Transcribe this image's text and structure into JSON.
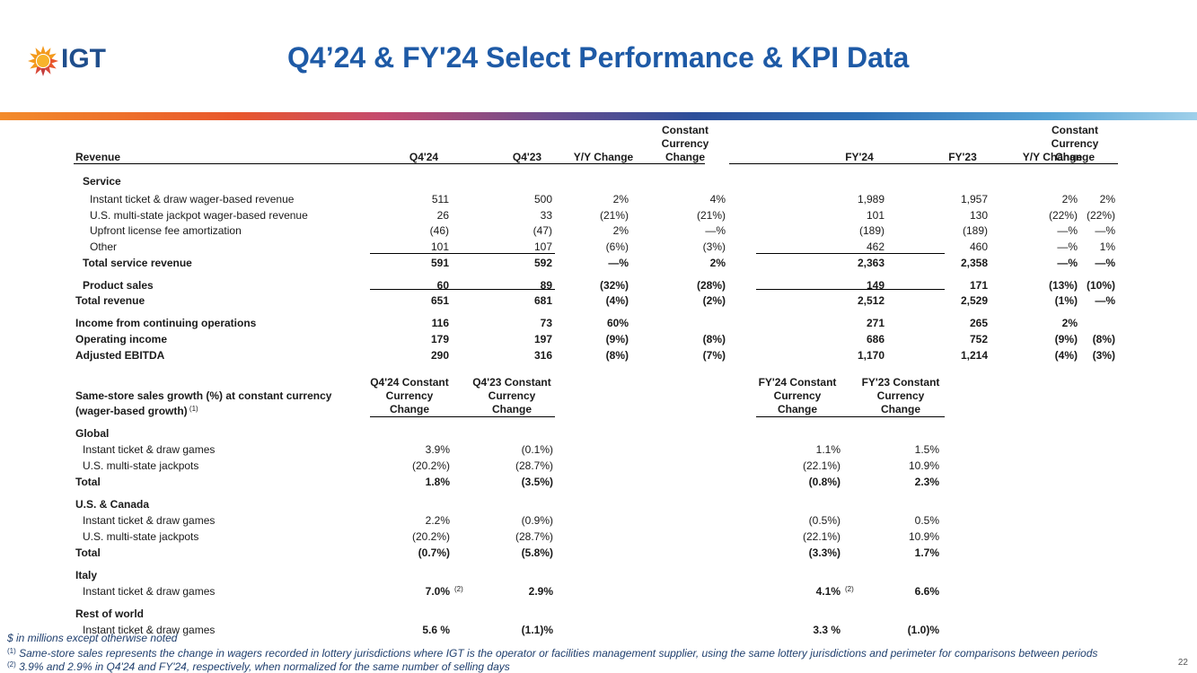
{
  "brand": {
    "logo_text": "IGT"
  },
  "title": "Q4’24 & FY'24 Select Performance & KPI Data",
  "page_number": "22",
  "revenue_table": {
    "row_header": "Revenue",
    "columns": [
      "Q4'24",
      "Q4'23",
      "Y/Y Change",
      "Constant Currency Change",
      "FY'24",
      "FY'23",
      "Y/Y Change",
      "Constant Currency Change"
    ],
    "cc_lines": [
      "Constant",
      "Currency",
      "Change"
    ],
    "service_label": "Service",
    "rows": [
      {
        "label": "Instant ticket & draw wager-based revenue",
        "values": [
          "511",
          "500",
          "2%",
          "4%",
          "1,989",
          "1,957",
          "2%",
          "2%"
        ]
      },
      {
        "label": "U.S. multi-state jackpot wager-based revenue",
        "values": [
          "26",
          "33",
          "(21%)",
          "(21%)",
          "101",
          "130",
          "(22%)",
          "(22%)"
        ]
      },
      {
        "label": "Upfront license fee amortization",
        "values": [
          "(46)",
          "(47)",
          "2%",
          "—%",
          "(189)",
          "(189)",
          "—%",
          "—%"
        ]
      },
      {
        "label": "Other",
        "values": [
          "101",
          "107",
          "(6%)",
          "(3%)",
          "462",
          "460",
          "—%",
          "1%"
        ]
      },
      {
        "label": "Total service revenue",
        "values": [
          "591",
          "592",
          "—%",
          "2%",
          "2,363",
          "2,358",
          "—%",
          "—%"
        ]
      },
      {
        "label": "Product sales",
        "values": [
          "60",
          "89",
          "(32%)",
          "(28%)",
          "149",
          "171",
          "(13%)",
          "(10%)"
        ]
      },
      {
        "label": "Total revenue",
        "values": [
          "651",
          "681",
          "(4%)",
          "(2%)",
          "2,512",
          "2,529",
          "(1%)",
          "—%"
        ]
      },
      {
        "label": "Income from continuing operations",
        "values": [
          "116",
          "73",
          "60%",
          "",
          "271",
          "265",
          "2%",
          ""
        ]
      },
      {
        "label": "Operating income",
        "values": [
          "179",
          "197",
          "(9%)",
          "(8%)",
          "686",
          "752",
          "(9%)",
          "(8%)"
        ]
      },
      {
        "label": "Adjusted EBITDA",
        "values": [
          "290",
          "316",
          "(8%)",
          "(7%)",
          "1,170",
          "1,214",
          "(4%)",
          "(3%)"
        ]
      }
    ]
  },
  "sss_table": {
    "header_lines": [
      "Same-store sales growth (%) at constant currency",
      "(wager-based growth)"
    ],
    "header_note": "(1)",
    "columns": [
      [
        "Q4'24 Constant",
        "Currency",
        "Change"
      ],
      [
        "Q4'23 Constant",
        "Currency",
        "Change"
      ],
      [
        "FY'24 Constant",
        "Currency",
        "Change"
      ],
      [
        "FY'23 Constant",
        "Currency",
        "Change"
      ]
    ],
    "sections": [
      {
        "label": "Global",
        "rows": [
          {
            "label": "Instant ticket & draw games",
            "values": [
              "3.9%",
              "(0.1%)",
              "1.1%",
              "1.5%"
            ]
          },
          {
            "label": "U.S. multi-state jackpots",
            "values": [
              "(20.2%)",
              "(28.7%)",
              "(22.1%)",
              "10.9%"
            ]
          },
          {
            "label": "Total",
            "values": [
              "1.8%",
              "(3.5%)",
              "(0.8%)",
              "2.3%"
            ]
          }
        ]
      },
      {
        "label": "U.S. & Canada",
        "rows": [
          {
            "label": "Instant ticket & draw games",
            "values": [
              "2.2%",
              "(0.9%)",
              "(0.5%)",
              "0.5%"
            ]
          },
          {
            "label": "U.S. multi-state jackpots",
            "values": [
              "(20.2%)",
              "(28.7%)",
              "(22.1%)",
              "10.9%"
            ]
          },
          {
            "label": "Total",
            "values": [
              "(0.7%)",
              "(5.8%)",
              "(3.3%)",
              "1.7%"
            ]
          }
        ]
      },
      {
        "label": "Italy",
        "rows": [
          {
            "label": "Instant ticket & draw games",
            "values": [
              "7.0%",
              "2.9%",
              "4.1%",
              "6.6%"
            ],
            "notes": [
              "(2)",
              "",
              "(2)",
              ""
            ]
          }
        ]
      },
      {
        "label": "Rest of world",
        "rows": [
          {
            "label": "Instant ticket & draw games",
            "values": [
              "5.6 %",
              "(1.1)%",
              "3.3 %",
              "(1.0)%"
            ]
          }
        ]
      }
    ]
  },
  "footnotes": {
    "units": "$ in millions except otherwise noted",
    "note1_mark": "(1)",
    "note1": "Same-store sales represents the change in wagers recorded in lottery jurisdictions where IGT is the operator or facilities management supplier, using the same lottery jurisdictions and perimeter for comparisons between periods",
    "note2_mark": "(2)",
    "note2": "3.9% and 2.9% in Q4'24 and FY'24, respectively, when normalized for the same number of selling days"
  }
}
